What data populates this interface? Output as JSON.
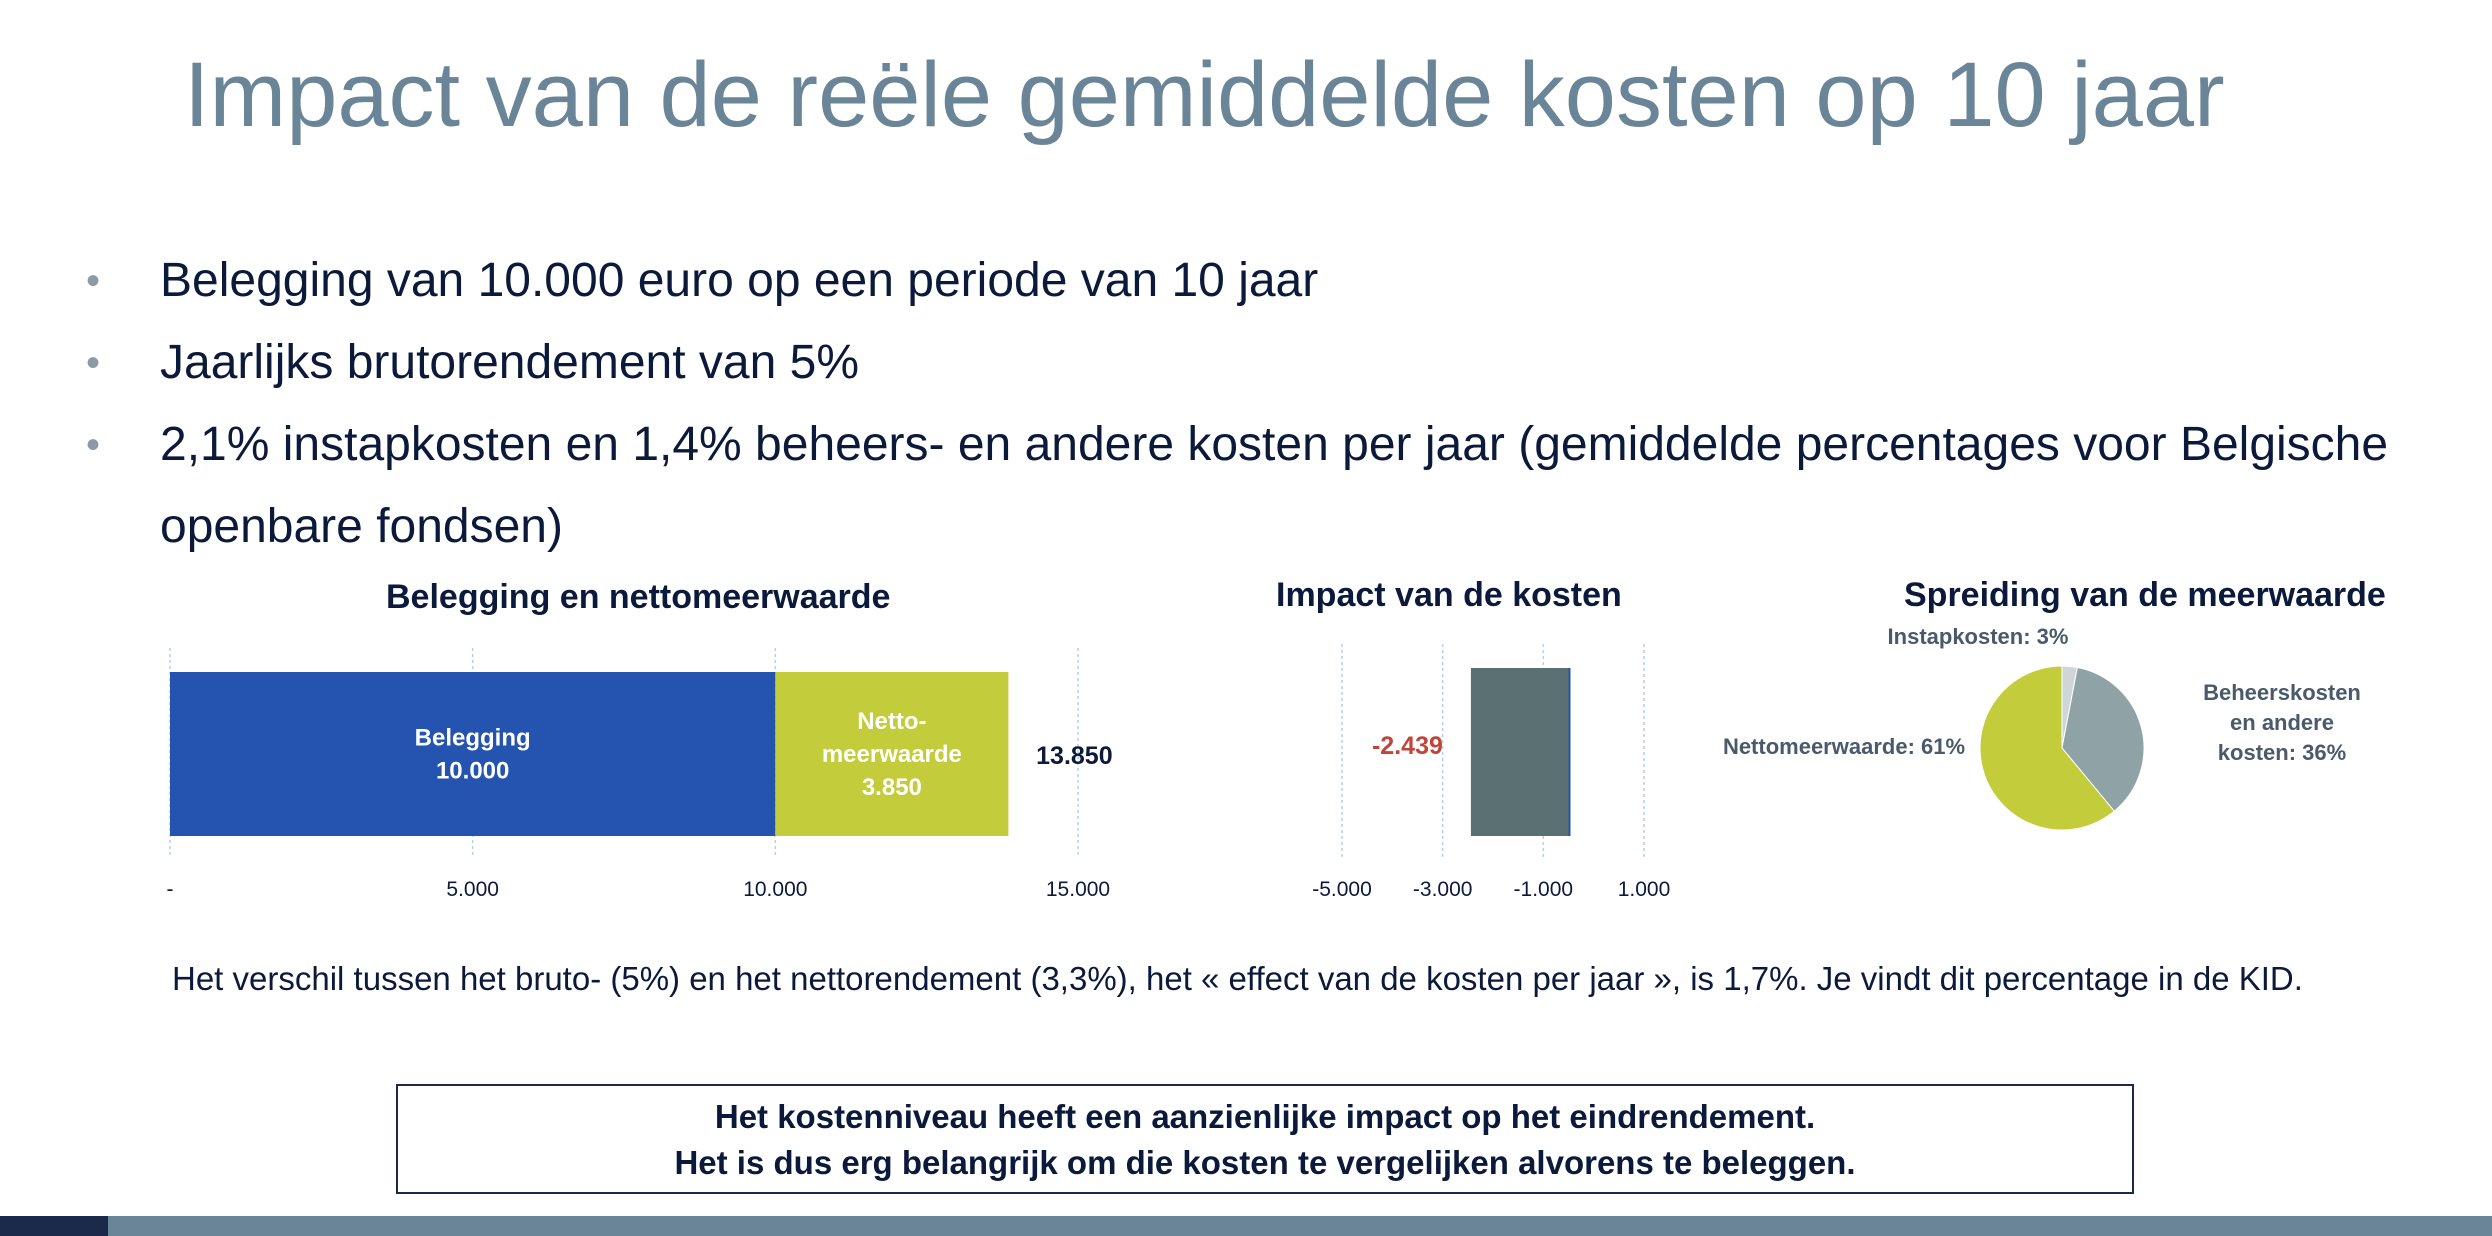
{
  "slide": {
    "title": "Impact van de reële gemiddelde kosten op 10 jaar",
    "bullets": [
      "Belegging van 10.000 euro op een periode van 10 jaar",
      "Jaarlijks brutorendement van 5%",
      "2,1% instapkosten en 1,4% beheers- en andere kosten per jaar (gemiddelde percentages voor Belgische",
      "openbare fondsen)"
    ],
    "bullet_glyph": "•"
  },
  "chart_data": [
    {
      "type": "bar",
      "orientation": "horizontal",
      "stacked": true,
      "title": "Belegging en nettomeerwaarde",
      "series": [
        {
          "name": "Belegging",
          "values": [
            10000
          ],
          "color": "#2553b0",
          "label_lines": [
            "Belegging",
            "10.000"
          ]
        },
        {
          "name": "Netto-meerwaarde",
          "values": [
            3850
          ],
          "color": "#c3cc3a",
          "label_lines": [
            "Netto-",
            "meerwaarde",
            "3.850"
          ]
        }
      ],
      "total_label": "13.850",
      "xlim": [
        0,
        15000
      ],
      "ticks": [
        {
          "value": 0,
          "label": "-"
        },
        {
          "value": 5000,
          "label": "5.000"
        },
        {
          "value": 10000,
          "label": "10.000"
        },
        {
          "value": 15000,
          "label": "15.000"
        }
      ],
      "grid": true
    },
    {
      "type": "bar",
      "orientation": "vertical",
      "title": "Impact van de kosten",
      "values": [
        -2439
      ],
      "value_label": "-2.439",
      "bar_color": "#5b7072",
      "label_color": "#c0463a",
      "xlim": [
        -5000,
        1000
      ],
      "ticks": [
        {
          "value": -5000,
          "label": "-5.000"
        },
        {
          "value": -3000,
          "label": "-3.000"
        },
        {
          "value": -1000,
          "label": "-1.000"
        },
        {
          "value": 1000,
          "label": "1.000"
        }
      ],
      "grid": true
    },
    {
      "type": "pie",
      "title": "Spreiding van de meerwaarde",
      "slices": [
        {
          "name": "Instapkosten",
          "value": 3,
          "color": "#cfd6d8",
          "label_lines": [
            "Instapkosten: 3%"
          ]
        },
        {
          "name": "Beheerskosten en andere kosten",
          "value": 36,
          "color": "#8fa3a6",
          "label_lines": [
            "Beheerskosten",
            "en andere",
            "kosten: 36%"
          ]
        },
        {
          "name": "Nettomeerwaarde",
          "value": 61,
          "color": "#c3cc3a",
          "label_lines": [
            "Nettomeerwaarde: 61%"
          ]
        }
      ]
    }
  ],
  "footnote": "Het verschil tussen het bruto- (5%) en het nettorendement (3,3%), het « effect van de kosten per jaar  », is 1,7%. Je vindt dit percentage in de KID.",
  "conclusion": {
    "line1": "Het kostenniveau heeft een aanzienlijke impact op het eindrendement.",
    "line2": "Het is dus erg belangrijk om die kosten te vergelijken alvorens te beleggen."
  },
  "colors": {
    "title": "#6b8598",
    "text": "#0b1a3a",
    "footer_bar": "#6b8598",
    "grid": "#b9cfe4"
  }
}
